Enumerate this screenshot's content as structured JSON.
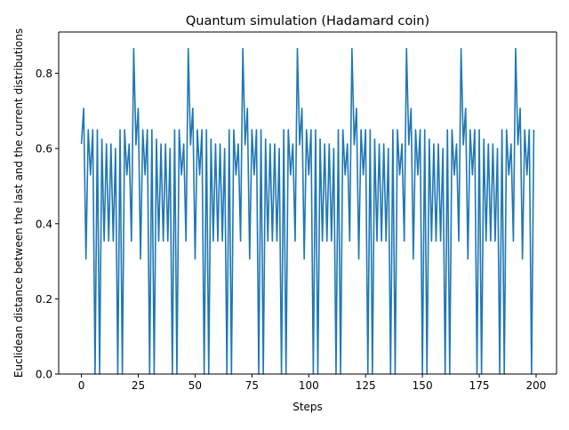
{
  "chart_data": {
    "type": "line",
    "title": "Quantum simulation (Hadamard coin)",
    "xlabel": "Steps",
    "ylabel": "Euclidean distance between the last and the current distributions",
    "xlim": [
      -10,
      209
    ],
    "ylim": [
      0,
      0.91
    ],
    "xticks": [
      0,
      25,
      50,
      75,
      100,
      125,
      150,
      175,
      200
    ],
    "yticks": [
      0.0,
      0.2,
      0.4,
      0.6,
      0.8
    ],
    "xtick_labels": [
      "0",
      "25",
      "50",
      "75",
      "100",
      "125",
      "150",
      "175",
      "200"
    ],
    "ytick_labels": [
      "0.0",
      "0.2",
      "0.4",
      "0.6",
      "0.8"
    ],
    "grid": false,
    "series": [
      {
        "color": "#1f77b4",
        "x": [
          0,
          1,
          2,
          3,
          4,
          5,
          6,
          7,
          8,
          9,
          10,
          11,
          12,
          13,
          14,
          15,
          16,
          17,
          18,
          19,
          20,
          21,
          22,
          23,
          24,
          25,
          26,
          27,
          28,
          29,
          30,
          31,
          32,
          33,
          34,
          35,
          36,
          37,
          38,
          39,
          40,
          41,
          42,
          43,
          44,
          45,
          46,
          47,
          48,
          49,
          50,
          51,
          52,
          53,
          54,
          55,
          56,
          57,
          58,
          59,
          60,
          61,
          62,
          63,
          64,
          65,
          66,
          67,
          68,
          69,
          70,
          71,
          72,
          73,
          74,
          75,
          76,
          77,
          78,
          79,
          80,
          81,
          82,
          83,
          84,
          85,
          86,
          87,
          88,
          89,
          90,
          91,
          92,
          93,
          94,
          95,
          96,
          97,
          98,
          99,
          100,
          101,
          102,
          103,
          104,
          105,
          106,
          107,
          108,
          109,
          110,
          111,
          112,
          113,
          114,
          115,
          116,
          117,
          118,
          119,
          120,
          121,
          122,
          123,
          124,
          125,
          126,
          127,
          128,
          129,
          130,
          131,
          132,
          133,
          134,
          135,
          136,
          137,
          138,
          139,
          140,
          141,
          142,
          143,
          144,
          145,
          146,
          147,
          148,
          149,
          150,
          151,
          152,
          153,
          154,
          155,
          156,
          157,
          158,
          159,
          160,
          161,
          162,
          163,
          164,
          165,
          166,
          167,
          168,
          169,
          170,
          171,
          172,
          173,
          174,
          175,
          176,
          177,
          178,
          179,
          180,
          181,
          182,
          183,
          184,
          185,
          186,
          187,
          188,
          189,
          190,
          191,
          192,
          193,
          194,
          195,
          196,
          197,
          198,
          199
        ],
        "y": [
          0.612,
          0.707,
          0.306,
          0.65,
          0.53,
          0.65,
          0.0,
          0.65,
          0.0,
          0.625,
          0.354,
          0.612,
          0.354,
          0.612,
          0.354,
          0.6,
          0.0,
          0.65,
          0.0,
          0.65,
          0.53,
          0.612,
          0.354,
          0.866,
          0.61,
          0.707,
          0.306,
          0.65,
          0.53,
          0.65,
          0.0,
          0.65,
          0.0,
          0.625,
          0.354,
          0.612,
          0.354,
          0.612,
          0.354,
          0.6,
          0.0,
          0.65,
          0.0,
          0.65,
          0.53,
          0.612,
          0.354,
          0.866,
          0.61,
          0.707,
          0.306,
          0.65,
          0.53,
          0.65,
          0.0,
          0.65,
          0.0,
          0.625,
          0.354,
          0.612,
          0.354,
          0.612,
          0.354,
          0.6,
          0.0,
          0.65,
          0.0,
          0.65,
          0.53,
          0.612,
          0.354,
          0.866,
          0.61,
          0.707,
          0.306,
          0.65,
          0.53,
          0.65,
          0.0,
          0.65,
          0.0,
          0.625,
          0.354,
          0.612,
          0.354,
          0.612,
          0.354,
          0.6,
          0.0,
          0.65,
          0.0,
          0.65,
          0.53,
          0.612,
          0.354,
          0.866,
          0.61,
          0.707,
          0.306,
          0.65,
          0.53,
          0.65,
          0.0,
          0.65,
          0.0,
          0.625,
          0.354,
          0.612,
          0.354,
          0.612,
          0.354,
          0.6,
          0.0,
          0.65,
          0.0,
          0.65,
          0.53,
          0.612,
          0.354,
          0.866,
          0.61,
          0.707,
          0.306,
          0.65,
          0.53,
          0.65,
          0.0,
          0.65,
          0.0,
          0.625,
          0.354,
          0.612,
          0.354,
          0.612,
          0.354,
          0.6,
          0.0,
          0.65,
          0.0,
          0.65,
          0.53,
          0.612,
          0.354,
          0.866,
          0.61,
          0.707,
          0.306,
          0.65,
          0.53,
          0.65,
          0.0,
          0.65,
          0.0,
          0.625,
          0.354,
          0.612,
          0.354,
          0.612,
          0.354,
          0.6,
          0.0,
          0.65,
          0.0,
          0.65,
          0.53,
          0.612,
          0.354,
          0.866,
          0.61,
          0.707,
          0.306,
          0.65,
          0.53,
          0.65,
          0.0,
          0.65,
          0.0,
          0.625,
          0.354,
          0.612,
          0.354,
          0.612,
          0.354,
          0.6,
          0.0,
          0.65,
          0.0,
          0.65,
          0.53,
          0.612,
          0.354,
          0.866,
          0.61,
          0.707,
          0.306,
          0.65,
          0.53,
          0.65,
          0.0,
          0.65
        ]
      }
    ]
  }
}
